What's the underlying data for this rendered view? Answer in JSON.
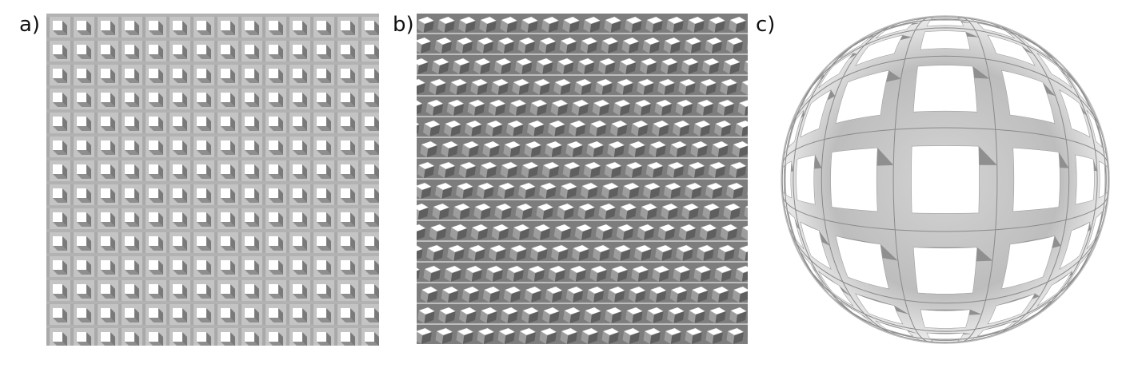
{
  "panels": {
    "a": {
      "label": "a)"
    },
    "b": {
      "label": "b)"
    },
    "c": {
      "label": "c)"
    }
  },
  "colors": {
    "background": "#ffffff",
    "face_top": "#ffffff",
    "face_gray": "#9b9b9b",
    "face_dark": "#6f6f6f",
    "face_mid": "#b8b8b8",
    "base": "#c8c8c8"
  }
}
